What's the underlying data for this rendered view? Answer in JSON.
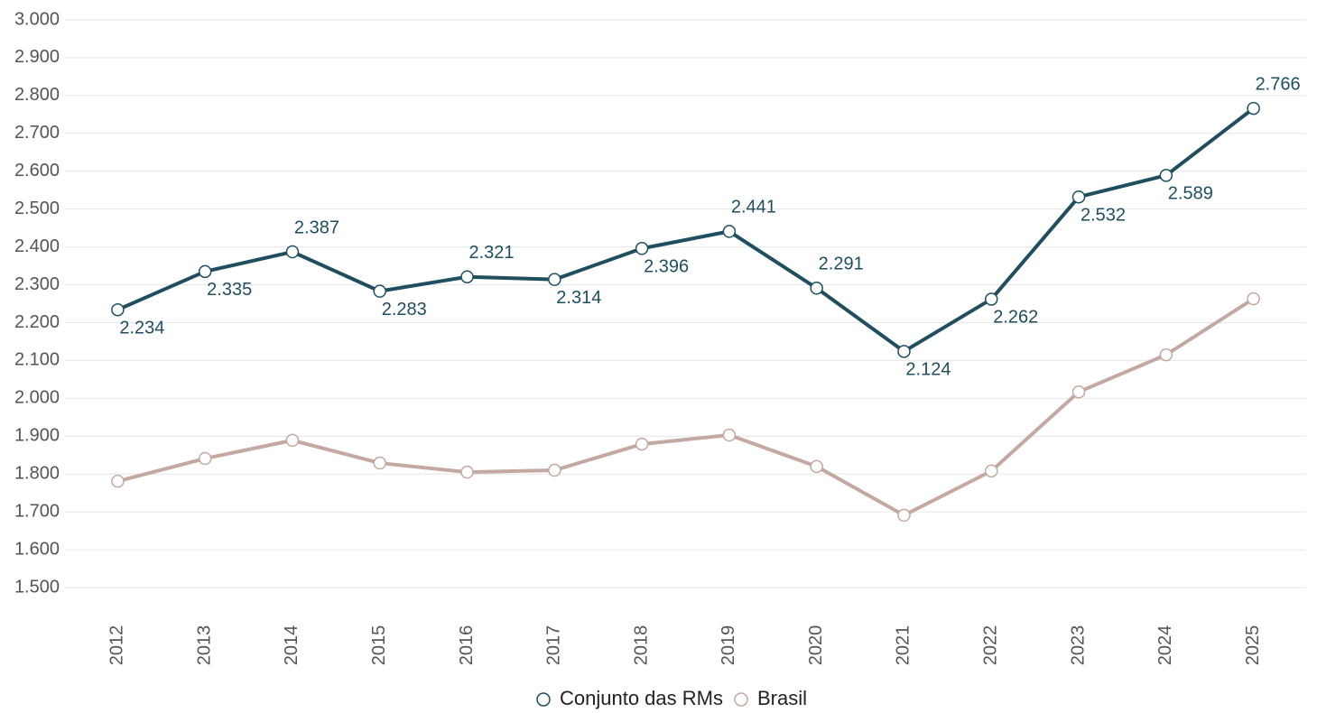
{
  "chart_data": {
    "type": "line",
    "categories": [
      "2012",
      "2013",
      "2014",
      "2015",
      "2016",
      "2017",
      "2018",
      "2019",
      "2020",
      "2021",
      "2022",
      "2023",
      "2024",
      "2025"
    ],
    "series": [
      {
        "name": "Conjunto das RMs",
        "color": "#1f4e5f",
        "values": [
          2234,
          2335,
          2387,
          2283,
          2321,
          2314,
          2396,
          2441,
          2291,
          2124,
          2262,
          2532,
          2589,
          2766
        ],
        "value_labels": [
          "2.234",
          "2.335",
          "2.387",
          "2.283",
          "2.321",
          "2.314",
          "2.396",
          "2.441",
          "2.291",
          "2.124",
          "2.262",
          "2.532",
          "2.589",
          "2.766"
        ]
      },
      {
        "name": "Brasil",
        "color": "#c4a8a2",
        "values": [
          1781,
          1841,
          1889,
          1829,
          1805,
          1810,
          1879,
          1903,
          1820,
          1691,
          1808,
          2017,
          2115,
          2263
        ]
      }
    ],
    "ylim": [
      1450,
      3050
    ],
    "yticks": [
      {
        "value": 1500,
        "label": "1.500"
      },
      {
        "value": 1600,
        "label": "1.600"
      },
      {
        "value": 1700,
        "label": "1.700"
      },
      {
        "value": 1800,
        "label": "1.800"
      },
      {
        "value": 1900,
        "label": "1.900"
      },
      {
        "value": 2000,
        "label": "2.000"
      },
      {
        "value": 2100,
        "label": "2.100"
      },
      {
        "value": 2200,
        "label": "2.200"
      },
      {
        "value": 2300,
        "label": "2.300"
      },
      {
        "value": 2400,
        "label": "2.400"
      },
      {
        "value": 2500,
        "label": "2.500"
      },
      {
        "value": 2600,
        "label": "2.600"
      },
      {
        "value": 2700,
        "label": "2.700"
      },
      {
        "value": 2800,
        "label": "2.800"
      },
      {
        "value": 2900,
        "label": "2.900"
      },
      {
        "value": 3000,
        "label": "3.000"
      }
    ],
    "grid": true,
    "legend": "bottom"
  }
}
